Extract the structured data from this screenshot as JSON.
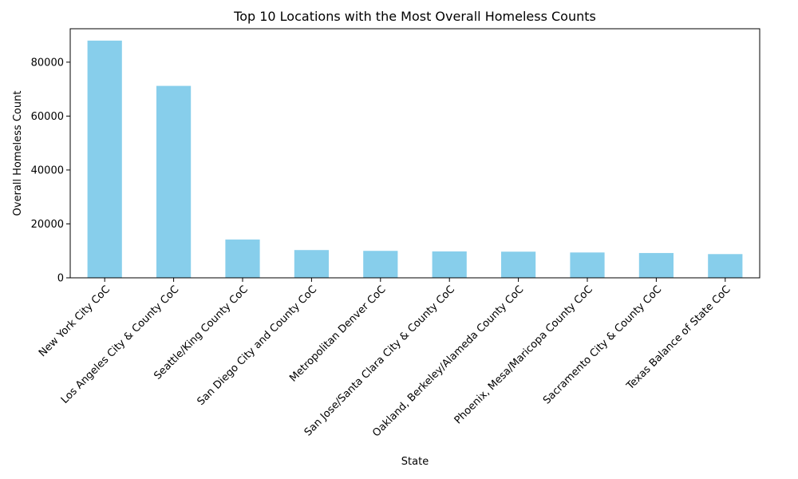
{
  "chart_data": {
    "type": "bar",
    "title": "Top 10 Locations with the Most Overall Homeless Counts",
    "xlabel": "State",
    "ylabel": "Overall Homeless Count",
    "categories": [
      "New York City CoC",
      "Los Angeles City & County CoC",
      "Seattle/King County CoC",
      "San Diego City and County CoC",
      "Metropolitan Denver CoC",
      "San Jose/Santa Clara City & County CoC",
      "Oakland, Berkeley/Alameda County CoC",
      "Phoenix, Mesa/Maricopa County CoC",
      "Sacramento City & County CoC",
      "Texas Balance of State CoC"
    ],
    "values": [
      88000,
      71200,
      14200,
      10300,
      10000,
      9800,
      9700,
      9400,
      9200,
      8800
    ],
    "ylim": [
      0,
      92400
    ],
    "yticks": [
      0,
      20000,
      40000,
      60000,
      80000
    ],
    "bar_color": "#87ceeb",
    "grid": false,
    "legend": "none"
  }
}
